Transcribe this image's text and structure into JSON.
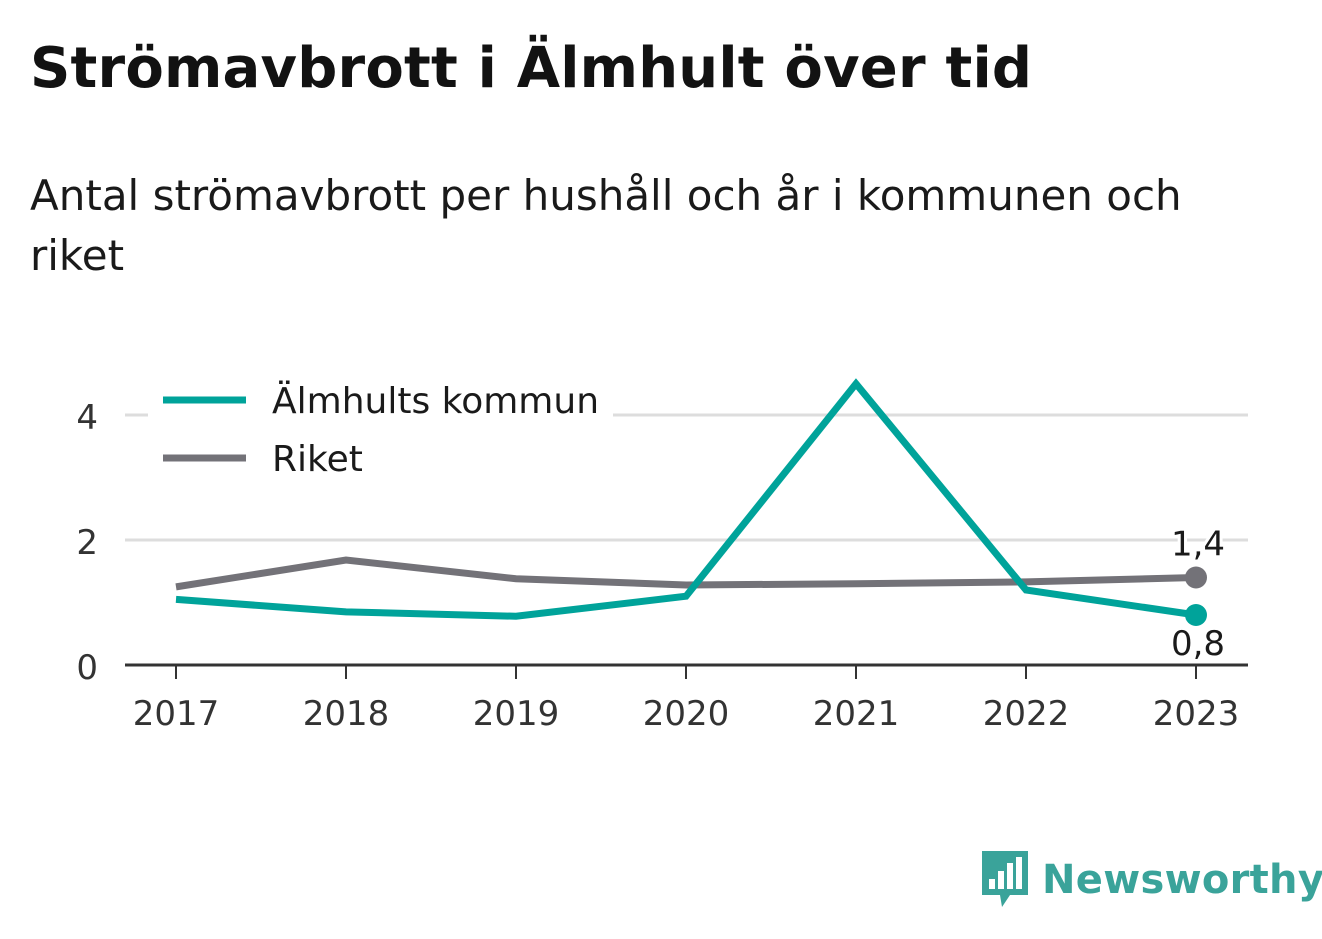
{
  "title": "Strömavbrott i Älmhult över tid",
  "subtitle": "Antal strömavbrott per hushåll och år i kommunen och riket",
  "brand": "Newsworthy",
  "colors": {
    "almhult": "#00a39a",
    "riket": "#737278",
    "grid": "#dddddd",
    "axis": "#333333",
    "brand": "#3aa39a"
  },
  "chart_data": {
    "type": "line",
    "x": [
      "2017",
      "2018",
      "2019",
      "2020",
      "2021",
      "2022",
      "2023"
    ],
    "yticks": [
      0,
      2,
      4
    ],
    "ylim": [
      0,
      4.8
    ],
    "grid": true,
    "legend": "top-left",
    "series": [
      {
        "name": "Älmhults kommun",
        "color": "#00a39a",
        "values": [
          1.05,
          0.85,
          0.78,
          1.1,
          4.5,
          1.2,
          0.8
        ],
        "end_label": "0,8"
      },
      {
        "name": "Riket",
        "color": "#737278",
        "values": [
          1.25,
          1.68,
          1.38,
          1.28,
          1.3,
          1.33,
          1.4
        ],
        "end_label": "1,4"
      }
    ]
  }
}
